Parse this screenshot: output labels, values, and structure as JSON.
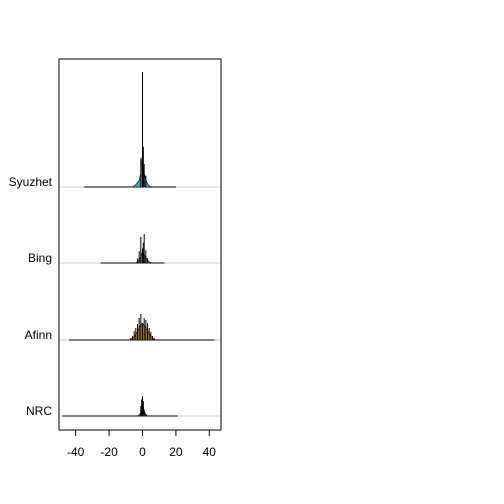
{
  "chart_data": {
    "type": "ridgeline",
    "title": "",
    "xlabel": "",
    "ylabel": "",
    "xlim": [
      -50,
      47
    ],
    "x_ticks": [
      -40,
      -20,
      0,
      20,
      40
    ],
    "x_tick_labels": [
      "-40",
      "-20",
      "0",
      "20",
      "40"
    ],
    "grid": false,
    "legend": "none",
    "series": [
      {
        "name": "Syuzhet",
        "color": "#4a9bb5",
        "range": [
          -35,
          20
        ],
        "density": [
          [
            -35,
            0
          ],
          [
            -6,
            0
          ],
          [
            -4,
            0.02
          ],
          [
            -3,
            0.04
          ],
          [
            -2,
            0.06
          ],
          [
            -1,
            0.12
          ],
          [
            -0.5,
            0.2
          ],
          [
            0,
            0.3
          ],
          [
            0.5,
            0.2
          ],
          [
            1,
            0.12
          ],
          [
            2,
            0.06
          ],
          [
            3,
            0.03
          ],
          [
            4,
            0.01
          ],
          [
            6,
            0
          ],
          [
            20,
            0
          ]
        ],
        "spikes": [
          [
            -1,
            0.25
          ],
          [
            0,
            1.0
          ],
          [
            0.5,
            0.35
          ],
          [
            1,
            0.2
          ],
          [
            2,
            0.1
          ]
        ]
      },
      {
        "name": "Bing",
        "color": "#4fa05a",
        "range": [
          -25,
          13
        ],
        "density": [
          [
            -25,
            0
          ],
          [
            -4,
            0
          ],
          [
            -3,
            0.03
          ],
          [
            -2,
            0.06
          ],
          [
            -1,
            0.1
          ],
          [
            0,
            0.2
          ],
          [
            1,
            0.14
          ],
          [
            2,
            0.1
          ],
          [
            3,
            0.05
          ],
          [
            4,
            0.02
          ],
          [
            6,
            0
          ],
          [
            13,
            0
          ]
        ],
        "spikes": [
          [
            -3,
            0.08
          ],
          [
            -2,
            0.2
          ],
          [
            -1,
            0.45
          ],
          [
            0,
            0.25
          ],
          [
            0.5,
            0.35
          ],
          [
            1,
            0.5
          ],
          [
            2,
            0.22
          ],
          [
            3,
            0.08
          ]
        ]
      },
      {
        "name": "Afinn",
        "color": "#e0a23a",
        "range": [
          -44,
          43
        ],
        "density": [
          [
            -44,
            0
          ],
          [
            -8,
            0
          ],
          [
            -7,
            0.02
          ],
          [
            -6,
            0.04
          ],
          [
            -5,
            0.08
          ],
          [
            -4,
            0.14
          ],
          [
            -3,
            0.22
          ],
          [
            -2,
            0.3
          ],
          [
            -1,
            0.38
          ],
          [
            0,
            0.42
          ],
          [
            1,
            0.36
          ],
          [
            2,
            0.3
          ],
          [
            3,
            0.24
          ],
          [
            4,
            0.16
          ],
          [
            5,
            0.1
          ],
          [
            6,
            0.05
          ],
          [
            7,
            0.02
          ],
          [
            8,
            0
          ],
          [
            43,
            0
          ]
        ],
        "spikes": [
          [
            -7,
            0.05
          ],
          [
            -6,
            0.1
          ],
          [
            -5,
            0.22
          ],
          [
            -4,
            0.3
          ],
          [
            -3,
            0.4
          ],
          [
            -2,
            0.55
          ],
          [
            -1,
            0.65
          ],
          [
            0,
            0.4
          ],
          [
            1,
            0.55
          ],
          [
            2,
            0.5
          ],
          [
            3,
            0.42
          ],
          [
            4,
            0.3
          ],
          [
            5,
            0.2
          ],
          [
            6,
            0.1
          ],
          [
            7,
            0.05
          ]
        ]
      },
      {
        "name": "NRC",
        "color": "#c0392b",
        "range": [
          -48,
          21
        ],
        "density": [
          [
            -48,
            0
          ],
          [
            -3,
            0
          ],
          [
            -2,
            0.03
          ],
          [
            -1,
            0.1
          ],
          [
            -0.5,
            0.2
          ],
          [
            0,
            0.3
          ],
          [
            0.5,
            0.3
          ],
          [
            1,
            0.15
          ],
          [
            2,
            0.05
          ],
          [
            3,
            0
          ],
          [
            21,
            0
          ]
        ],
        "spikes": [
          [
            -1,
            0.3
          ],
          [
            -0.5,
            0.5
          ],
          [
            0,
            0.6
          ],
          [
            0.5,
            0.45
          ],
          [
            1,
            0.2
          ],
          [
            2,
            0.05
          ]
        ]
      }
    ]
  }
}
